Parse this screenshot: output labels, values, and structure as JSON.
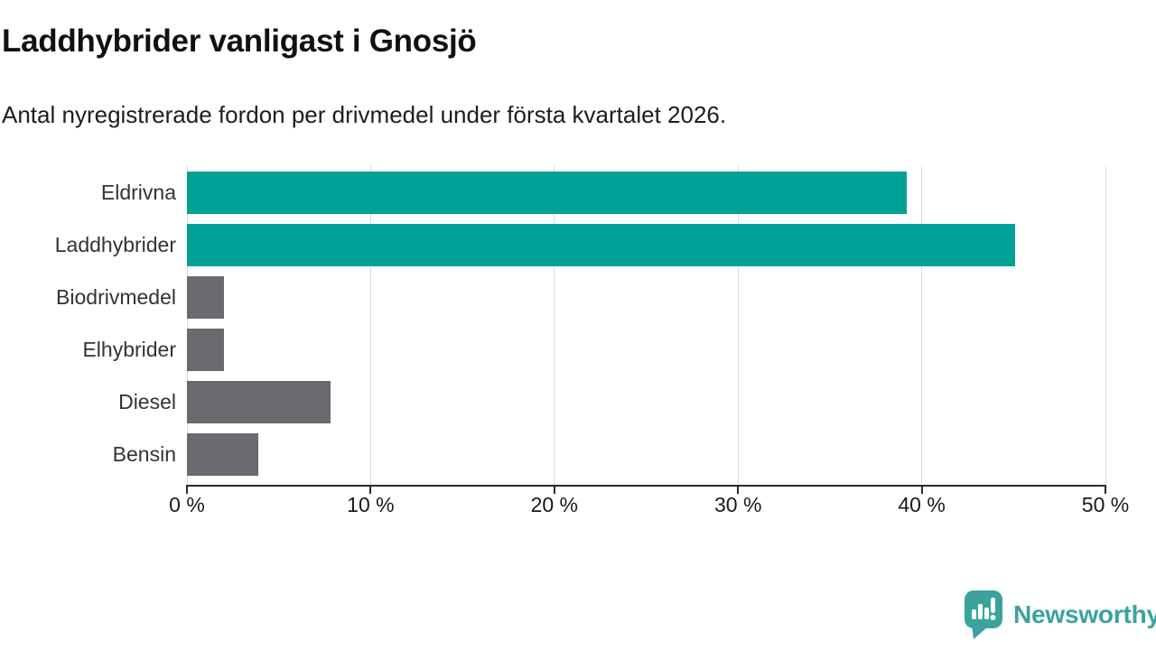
{
  "header": {
    "title": "Laddhybrider vanligast i Gnosjö",
    "subtitle": "Antal nyregistrerade fordon per drivmedel under första kvartalet 2026."
  },
  "chart_data": {
    "type": "bar",
    "orientation": "horizontal",
    "title": "Laddhybrider vanligast i Gnosjö",
    "subtitle": "Antal nyregistrerade fordon per drivmedel under första kvartalet 2026.",
    "categories": [
      "Eldrivna",
      "Laddhybrider",
      "Biodrivmedel",
      "Elhybrider",
      "Diesel",
      "Bensin"
    ],
    "values": [
      39.2,
      45.1,
      2.0,
      2.0,
      7.8,
      3.9
    ],
    "unit": "%",
    "xlim": [
      0,
      50
    ],
    "x_ticks": [
      0,
      10,
      20,
      30,
      40,
      50
    ],
    "x_tick_labels": [
      "0 %",
      "10 %",
      "20 %",
      "30 %",
      "40 %",
      "50 %"
    ],
    "bar_colors": [
      "#00A196",
      "#00A196",
      "#6B696E",
      "#6B696E",
      "#6B696E",
      "#6B696E"
    ],
    "highlight_color": "#00A196",
    "default_color": "#6B696E",
    "grid": true,
    "gridline_color": "#DBDBDB",
    "axis_color": "#2B2B2B",
    "legend": false
  },
  "footer": {
    "brand": "Newsworthy",
    "brand_color": "#3BA39E"
  }
}
